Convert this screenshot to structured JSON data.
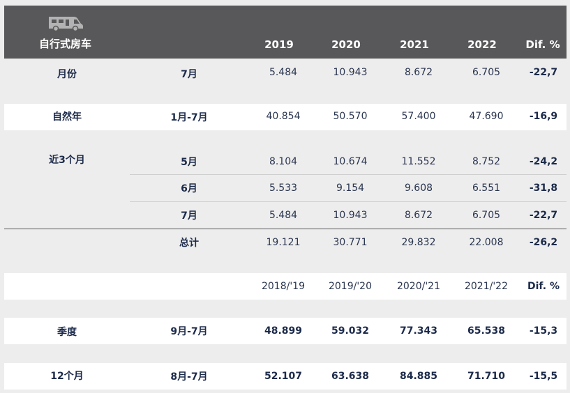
{
  "header": {
    "title": "自行式房车",
    "icon": "motorhome-icon",
    "years": [
      "2019",
      "2020",
      "2021",
      "2022"
    ],
    "dif": "Dif. %"
  },
  "month": {
    "label": "月份",
    "period": "7月",
    "values": [
      "5.484",
      "10.943",
      "8.672",
      "6.705"
    ],
    "dif": "-22,7"
  },
  "ytd": {
    "label": "自然年",
    "period": "1月-7月",
    "values": [
      "40.854",
      "50.570",
      "57.400",
      "47.690"
    ],
    "dif": "-16,9"
  },
  "last3": {
    "label": "近3个月",
    "rows": [
      {
        "period": "5月",
        "values": [
          "8.104",
          "10.674",
          "11.552",
          "8.752"
        ],
        "dif": "-24,2"
      },
      {
        "period": "6月",
        "values": [
          "5.533",
          "9.154",
          "9.608",
          "6.551"
        ],
        "dif": "-31,8"
      },
      {
        "period": "7月",
        "values": [
          "5.484",
          "10.943",
          "8.672",
          "6.705"
        ],
        "dif": "-22,7"
      }
    ],
    "total": {
      "period": "总计",
      "values": [
        "19.121",
        "30.771",
        "29.832",
        "22.008"
      ],
      "dif": "-26,2"
    }
  },
  "seasons": {
    "headers": [
      "2018/'19",
      "2019/'20",
      "2020/'21",
      "2021/'22"
    ],
    "dif": "Dif. %"
  },
  "season": {
    "label": "季度",
    "period": "9月-7月",
    "values": [
      "48.899",
      "59.032",
      "77.343",
      "65.538"
    ],
    "dif": "-15,3"
  },
  "twelve": {
    "label": "12个月",
    "period": "8月-7月",
    "values": [
      "52.107",
      "63.638",
      "84.885",
      "71.710"
    ],
    "dif": "-15,5"
  }
}
